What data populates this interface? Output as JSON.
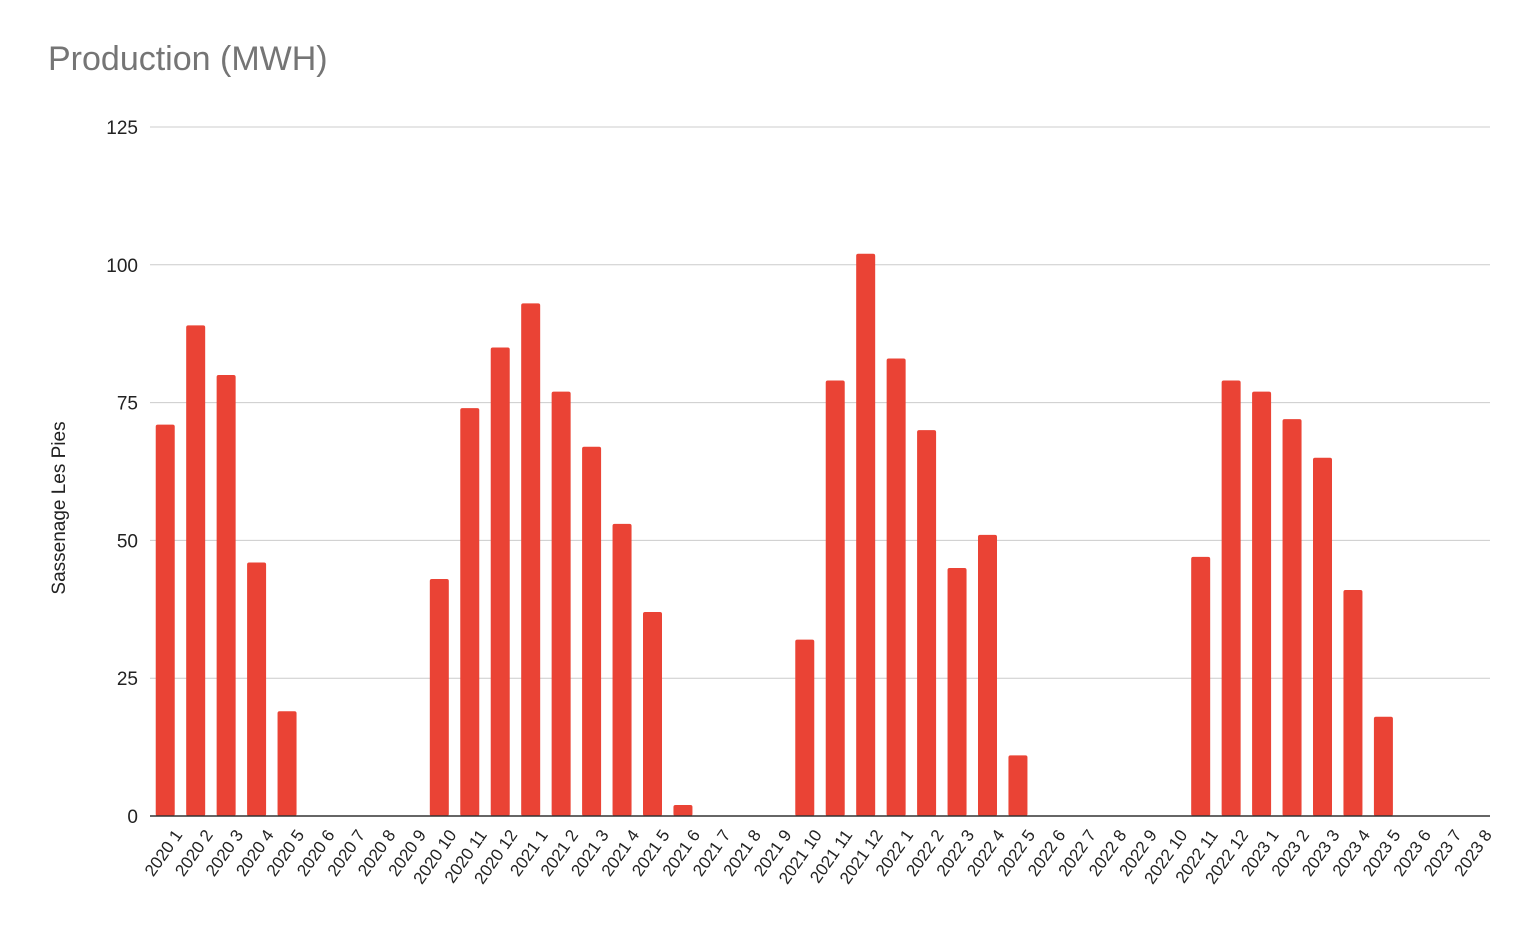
{
  "chart_data": {
    "type": "bar",
    "title": "Production (MWH)",
    "xlabel": "",
    "ylabel": "Sassenage Les Pies",
    "ylim": [
      0,
      125
    ],
    "yticks": [
      0,
      25,
      50,
      75,
      100,
      125
    ],
    "grid": true,
    "legend": "none",
    "bar_color": "#ea4335",
    "categories": [
      "2020 1",
      "2020 2",
      "2020 3",
      "2020 4",
      "2020 5",
      "2020 6",
      "2020 7",
      "2020 8",
      "2020 9",
      "2020 10",
      "2020 11",
      "2020 12",
      "2021 1",
      "2021 2",
      "2021 3",
      "2021 4",
      "2021 5",
      "2021 6",
      "2021 7",
      "2021 8",
      "2021 9",
      "2021 10",
      "2021 11",
      "2021 12",
      "2022 1",
      "2022 2",
      "2022 3",
      "2022 4",
      "2022 5",
      "2022 6",
      "2022 7",
      "2022 8",
      "2022 9",
      "2022 10",
      "2022 11",
      "2022 12",
      "2023 1",
      "2023 2",
      "2023 3",
      "2023 4",
      "2023 5",
      "2023 6",
      "2023 7",
      "2023 8"
    ],
    "values": [
      71,
      89,
      80,
      46,
      19,
      0,
      0,
      0,
      0,
      43,
      74,
      85,
      93,
      77,
      67,
      53,
      37,
      2,
      0,
      0,
      0,
      32,
      79,
      102,
      83,
      70,
      45,
      51,
      11,
      0,
      0,
      0,
      0,
      0,
      47,
      79,
      77,
      72,
      65,
      41,
      18,
      0,
      0,
      0
    ]
  }
}
